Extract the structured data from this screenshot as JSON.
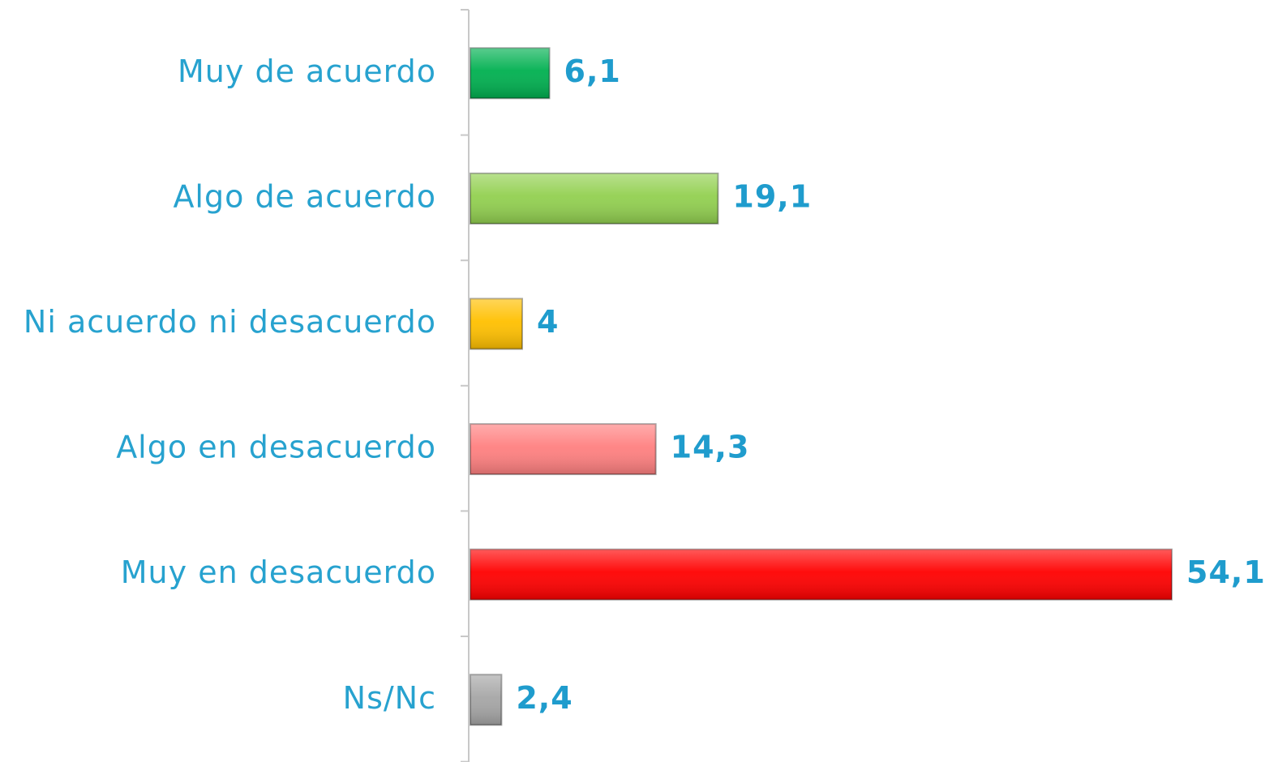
{
  "chart_data": {
    "type": "bar",
    "orientation": "horizontal",
    "categories": [
      "Muy de acuerdo",
      "Algo de acuerdo",
      "Ni acuerdo ni desacuerdo",
      "Algo en desacuerdo",
      "Muy en desacuerdo",
      "Ns/Nc"
    ],
    "values": [
      6.1,
      19.1,
      4,
      14.3,
      54.1,
      2.4
    ],
    "value_labels": [
      "6,1",
      "19,1",
      "4",
      "14,3",
      "54,1",
      "2,4"
    ],
    "colors": [
      "#00b050",
      "#92d050",
      "#ffc000",
      "#ff8080",
      "#ff0000",
      "#a6a6a6"
    ]
  }
}
